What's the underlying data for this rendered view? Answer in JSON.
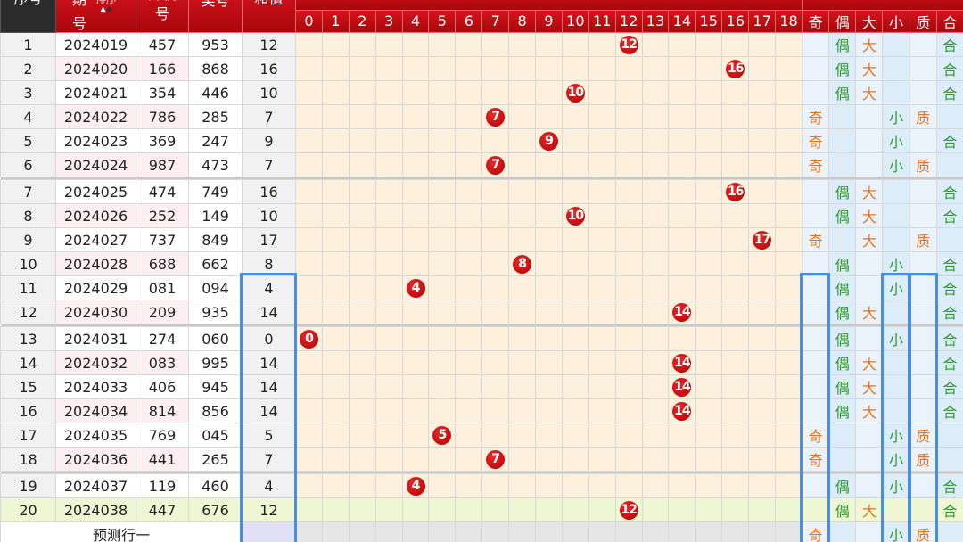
{
  "header": {
    "seq": "序号",
    "issue_top": "期",
    "issue_bottom": "号",
    "sort_label": "排序",
    "sort_icons": [
      "arrow-up-icon",
      "arrow-down-icon"
    ],
    "machine_top": "开机",
    "machine_bottom": "号",
    "prize": "奖号",
    "sum": "和值",
    "sum_columns": [
      "0",
      "1",
      "2",
      "3",
      "4",
      "5",
      "6",
      "7",
      "8",
      "9",
      "10",
      "11",
      "12",
      "13",
      "14",
      "15",
      "16",
      "17",
      "18"
    ],
    "attr_columns": [
      "奇",
      "偶",
      "大",
      "小",
      "质",
      "合"
    ]
  },
  "rows": [
    {
      "seq": "1",
      "issue": "2024019",
      "machine": "457",
      "prize": "953",
      "sum": "12",
      "attrs": [
        "",
        "偶",
        "大",
        "",
        "",
        "合"
      ]
    },
    {
      "seq": "2",
      "issue": "2024020",
      "machine": "166",
      "prize": "868",
      "sum": "16",
      "attrs": [
        "",
        "偶",
        "大",
        "",
        "",
        "合"
      ]
    },
    {
      "seq": "3",
      "issue": "2024021",
      "machine": "354",
      "prize": "446",
      "sum": "10",
      "attrs": [
        "",
        "偶",
        "大",
        "",
        "",
        "合"
      ]
    },
    {
      "seq": "4",
      "issue": "2024022",
      "machine": "786",
      "prize": "285",
      "sum": "7",
      "attrs": [
        "奇",
        "",
        "",
        "小",
        "质",
        ""
      ]
    },
    {
      "seq": "5",
      "issue": "2024023",
      "machine": "369",
      "prize": "247",
      "sum": "9",
      "attrs": [
        "奇",
        "",
        "",
        "小",
        "",
        "合"
      ]
    },
    {
      "seq": "6",
      "issue": "2024024",
      "machine": "987",
      "prize": "473",
      "sum": "7",
      "attrs": [
        "奇",
        "",
        "",
        "小",
        "质",
        ""
      ]
    },
    {
      "seq": "7",
      "issue": "2024025",
      "machine": "474",
      "prize": "749",
      "sum": "16",
      "attrs": [
        "",
        "偶",
        "大",
        "",
        "",
        "合"
      ]
    },
    {
      "seq": "8",
      "issue": "2024026",
      "machine": "252",
      "prize": "149",
      "sum": "10",
      "attrs": [
        "",
        "偶",
        "大",
        "",
        "",
        "合"
      ]
    },
    {
      "seq": "9",
      "issue": "2024027",
      "machine": "737",
      "prize": "849",
      "sum": "17",
      "attrs": [
        "奇",
        "",
        "大",
        "",
        "质",
        ""
      ]
    },
    {
      "seq": "10",
      "issue": "2024028",
      "machine": "688",
      "prize": "662",
      "sum": "8",
      "attrs": [
        "",
        "偶",
        "",
        "小",
        "",
        "合"
      ]
    },
    {
      "seq": "11",
      "issue": "2024029",
      "machine": "081",
      "prize": "094",
      "sum": "4",
      "attrs": [
        "",
        "偶",
        "",
        "小",
        "",
        "合"
      ]
    },
    {
      "seq": "12",
      "issue": "2024030",
      "machine": "209",
      "prize": "935",
      "sum": "14",
      "attrs": [
        "",
        "偶",
        "大",
        "",
        "",
        "合"
      ]
    },
    {
      "seq": "13",
      "issue": "2024031",
      "machine": "274",
      "prize": "060",
      "sum": "0",
      "attrs": [
        "",
        "偶",
        "",
        "小",
        "",
        "合"
      ]
    },
    {
      "seq": "14",
      "issue": "2024032",
      "machine": "083",
      "prize": "995",
      "sum": "14",
      "attrs": [
        "",
        "偶",
        "大",
        "",
        "",
        "合"
      ]
    },
    {
      "seq": "15",
      "issue": "2024033",
      "machine": "406",
      "prize": "945",
      "sum": "14",
      "attrs": [
        "",
        "偶",
        "大",
        "",
        "",
        "合"
      ]
    },
    {
      "seq": "16",
      "issue": "2024034",
      "machine": "814",
      "prize": "856",
      "sum": "14",
      "attrs": [
        "",
        "偶",
        "大",
        "",
        "",
        "合"
      ]
    },
    {
      "seq": "17",
      "issue": "2024035",
      "machine": "769",
      "prize": "045",
      "sum": "5",
      "attrs": [
        "奇",
        "",
        "",
        "小",
        "质",
        ""
      ]
    },
    {
      "seq": "18",
      "issue": "2024036",
      "machine": "441",
      "prize": "265",
      "sum": "7",
      "attrs": [
        "奇",
        "",
        "",
        "小",
        "质",
        ""
      ]
    },
    {
      "seq": "19",
      "issue": "2024037",
      "machine": "119",
      "prize": "460",
      "sum": "4",
      "attrs": [
        "",
        "偶",
        "",
        "小",
        "",
        "合"
      ]
    },
    {
      "seq": "20",
      "issue": "2024038",
      "machine": "447",
      "prize": "676",
      "sum": "12",
      "attrs": [
        "",
        "偶",
        "大",
        "",
        "",
        "合"
      ]
    }
  ],
  "prediction": {
    "label": "预测行一",
    "attrs": [
      "奇",
      "",
      "",
      "小",
      "质",
      ""
    ]
  },
  "colors": {
    "header_red": "#c00d14",
    "ball_red": "#c00000",
    "chart_bg": "#fdf0dc",
    "attr_bg": "#dcecf8",
    "highlight_row": "#eef6d3",
    "selection_blue": "#4a8ee0",
    "odd_text": "#e8731c",
    "even_text": "#2f9a2f"
  }
}
